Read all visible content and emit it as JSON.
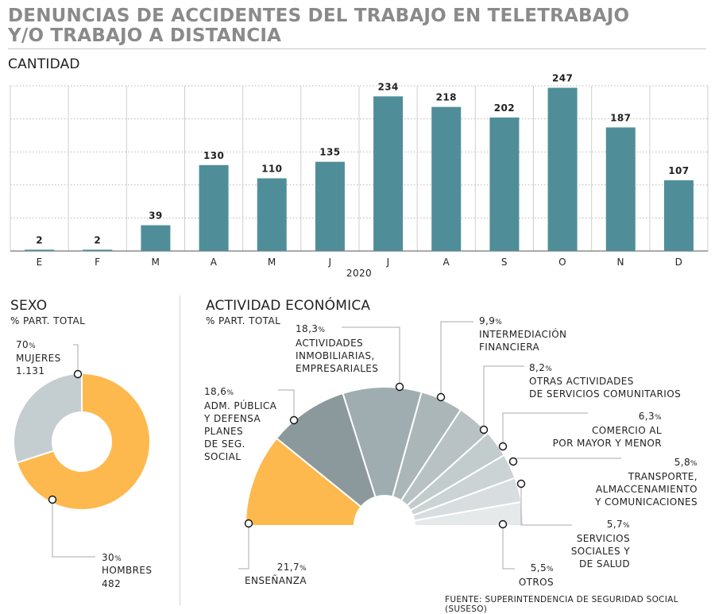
{
  "title_line1": "DENUNCIAS DE ACCIDENTES DEL TRABAJO EN TELETRABAJO",
  "title_line2": "Y/O TRABAJO A DISTANCIA",
  "source": "FUENTE: SUPERINTENDENCIA DE SEGURIDAD SOCIAL (SUSESO)",
  "colors": {
    "teal": "#4f8e99",
    "orange": "#fdb94e",
    "donut_gray": "#c4cdcf",
    "grid": "#b7b7b7"
  },
  "chart_data": [
    {
      "type": "bar",
      "title": "CANTIDAD",
      "categories": [
        "E",
        "F",
        "M",
        "A",
        "M",
        "J",
        "J",
        "A",
        "S",
        "O",
        "N",
        "D"
      ],
      "values": [
        2,
        2,
        39,
        130,
        110,
        135,
        234,
        218,
        202,
        247,
        187,
        107
      ],
      "xlabel": "2020",
      "ylim": [
        0,
        250
      ],
      "grid": true
    },
    {
      "type": "pie",
      "title": "SEXO",
      "subtitle": "% PART. TOTAL",
      "slices": [
        {
          "label": "MUJERES",
          "percent": "70",
          "count": "1.131",
          "value": 70
        },
        {
          "label": "HOMBRES",
          "percent": "30",
          "count": "482",
          "value": 30
        }
      ]
    },
    {
      "type": "pie",
      "title": "ACTIVIDAD ECONÓMICA",
      "subtitle": "% PART. TOTAL",
      "slices": [
        {
          "pct": "21,7",
          "value": 21.7,
          "lines": [
            "ENSEÑANZA"
          ],
          "color": "#fdb94e"
        },
        {
          "pct": "18,6",
          "value": 18.6,
          "lines": [
            "ADM. PÚBLICA",
            "Y DEFENSA",
            "PLANES",
            "DE SEG.",
            "SOCIAL"
          ],
          "color": "#8c999c"
        },
        {
          "pct": "18,3",
          "value": 18.3,
          "lines": [
            "ACTIVIDADES",
            "INMOBILIARIAS,",
            "EMPRESARIALES"
          ],
          "color": "#9fadb0"
        },
        {
          "pct": "9,9",
          "value": 9.9,
          "lines": [
            "INTERMEDIACIÓN",
            "FINANCIERA"
          ],
          "color": "#aab6b8"
        },
        {
          "pct": "8,2",
          "value": 8.2,
          "lines": [
            "OTRAS ACTIVIDADES",
            "DE SERVICIOS COMUNITARIOS"
          ],
          "color": "#b8c2c4"
        },
        {
          "pct": "6,3",
          "value": 6.3,
          "lines": [
            "COMERCIO AL",
            "POR MAYOR Y MENOR"
          ],
          "color": "#c3cccd"
        },
        {
          "pct": "5,8",
          "value": 5.8,
          "lines": [
            "TRANSPORTE,",
            "ALMACCENAMIENTO",
            "Y COMUNICACIONES"
          ],
          "color": "#ccd3d4"
        },
        {
          "pct": "5,7",
          "value": 5.7,
          "lines": [
            "SERVICIOS",
            "SOCIALES Y",
            "DE SALUD"
          ],
          "color": "#d8dedf"
        },
        {
          "pct": "5,5",
          "value": 5.5,
          "lines": [
            "OTROS"
          ],
          "color": "#e5e9e9"
        }
      ]
    }
  ]
}
